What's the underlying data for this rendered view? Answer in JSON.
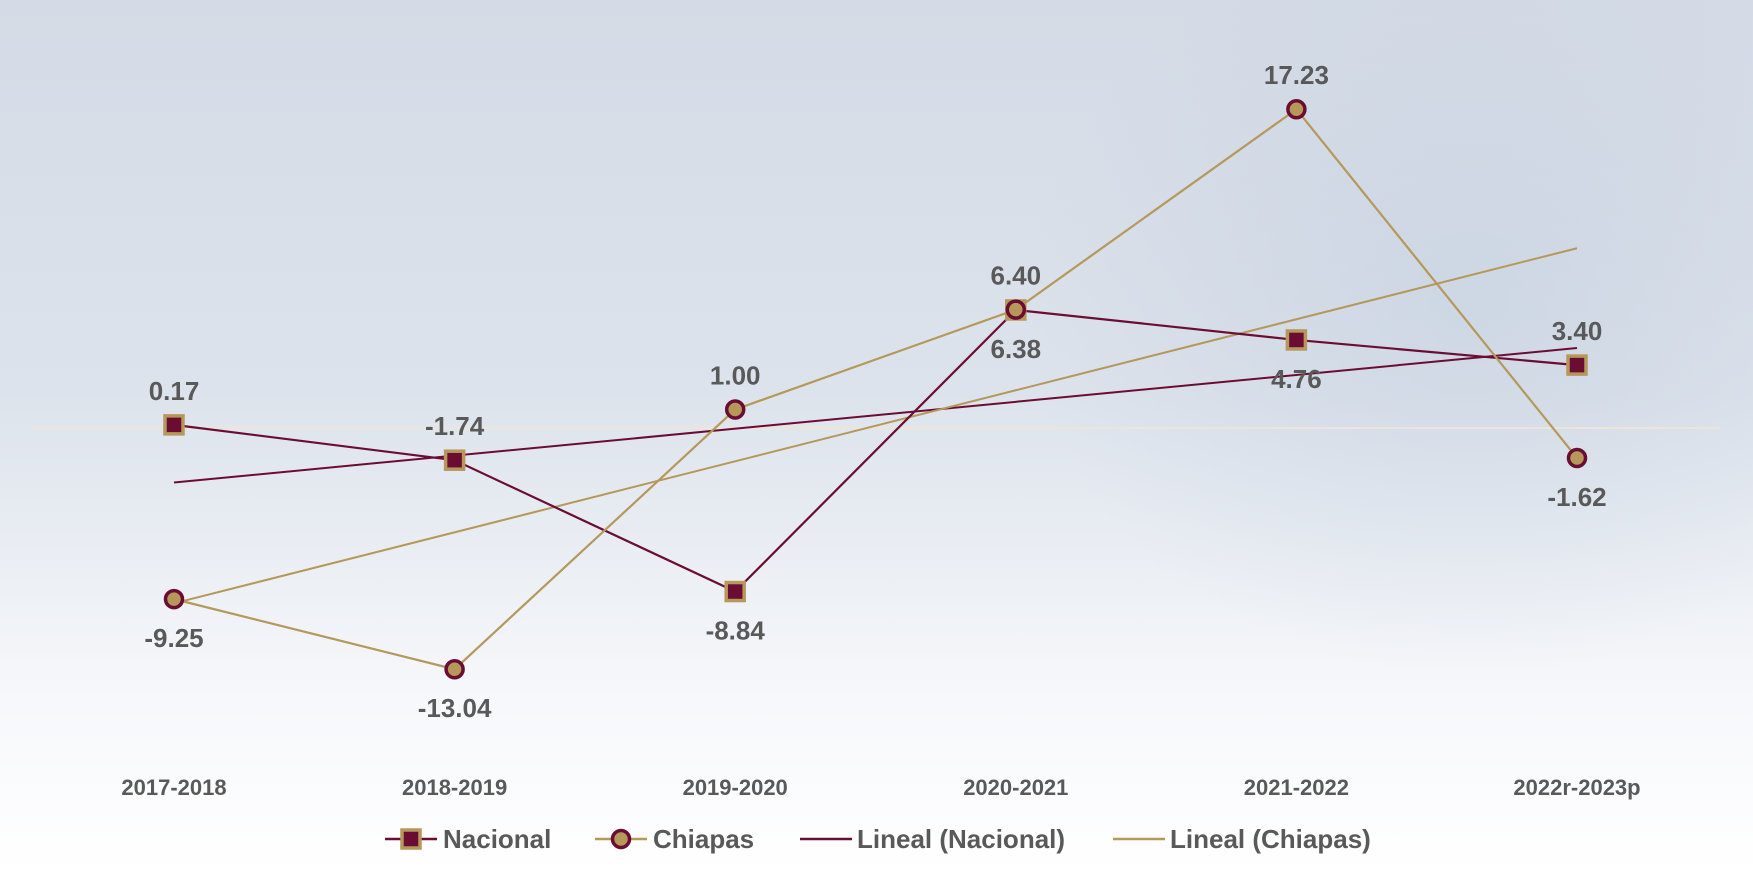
{
  "chart_data": {
    "type": "line",
    "title": "",
    "xlabel": "",
    "ylabel": "",
    "categories": [
      "2017-2018",
      "2018-2019",
      "2019-2020",
      "2020-2021",
      "2021-2022",
      "2022r-2023p"
    ],
    "ylim": [
      -19,
      24
    ],
    "grid": false,
    "legend_position": "bottom",
    "series": [
      {
        "name": "Nacional",
        "values": [
          0.17,
          -1.74,
          -8.84,
          6.38,
          4.76,
          3.4
        ],
        "labels": [
          "0.17",
          "-1.74",
          "-8.84",
          "6.38",
          "4.76",
          "3.40"
        ],
        "marker": "square",
        "line_color": "#6b0d32",
        "marker_fill": "#6b0d32",
        "marker_edge": "#b5985a"
      },
      {
        "name": "Chiapas",
        "values": [
          -9.25,
          -13.04,
          1.0,
          6.4,
          17.23,
          -1.62
        ],
        "labels": [
          "-9.25",
          "-13.04",
          "1.00",
          "6.40",
          "17.23",
          "-1.62"
        ],
        "marker": "circle",
        "line_color": "#b5985a",
        "marker_fill": "#b5985a",
        "marker_edge": "#6b0d32"
      }
    ],
    "trendlines": [
      {
        "name": "Lineal (Nacional)",
        "of": "Nacional",
        "color": "#6b0d32"
      },
      {
        "name": "Lineal (Chiapas)",
        "of": "Chiapas",
        "color": "#b5985a"
      }
    ]
  }
}
